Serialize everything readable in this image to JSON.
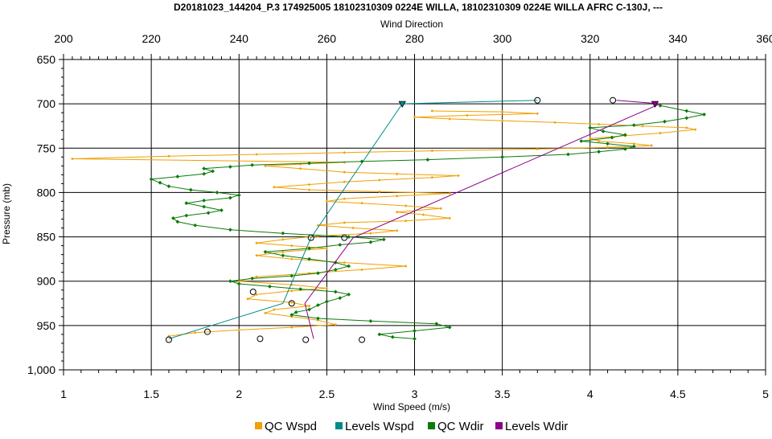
{
  "chart_data": {
    "type": "line",
    "title": "D20181023_144204_P.3 174925005 18102310309 0224E WILLA, 18102310309 0224E WILLA AFRC C-130J, ---",
    "x_bottom": {
      "label": "Wind Speed (m/s)",
      "range": [
        1,
        5
      ],
      "ticks": [
        "1",
        "1.5",
        "2",
        "2.5",
        "3",
        "3.5",
        "4",
        "4.5",
        "5"
      ]
    },
    "x_top": {
      "label": "Wind Direction",
      "range": [
        200,
        360
      ],
      "ticks": [
        "200",
        "220",
        "240",
        "260",
        "280",
        "300",
        "320",
        "340",
        "360"
      ]
    },
    "y": {
      "label": "Pressure (mb)",
      "range": [
        650,
        1000
      ],
      "inverted": true,
      "ticks": [
        "650",
        "700",
        "750",
        "800",
        "850",
        "900",
        "950",
        "1,000"
      ]
    },
    "grid": true,
    "legend_position": "bottom",
    "colors": {
      "qc_wspd": "#F0A000",
      "levels_wspd": "#008B8B",
      "qc_wdir": "#0B7A0B",
      "levels_wdir": "#8B008B"
    },
    "series": [
      {
        "name": "QC Wspd",
        "axis": "bottom",
        "points": [
          [
            1.6,
            962
          ],
          [
            1.75,
            958
          ],
          [
            2.0,
            955
          ],
          [
            2.3,
            952
          ],
          [
            2.55,
            949
          ],
          [
            2.45,
            944
          ],
          [
            2.3,
            940
          ],
          [
            2.15,
            936
          ],
          [
            2.2,
            932
          ],
          [
            2.4,
            928
          ],
          [
            2.3,
            924
          ],
          [
            2.05,
            920
          ],
          [
            2.1,
            915
          ],
          [
            2.3,
            911
          ],
          [
            2.5,
            908
          ],
          [
            2.3,
            904
          ],
          [
            2.0,
            900
          ],
          [
            2.1,
            895
          ],
          [
            2.4,
            891
          ],
          [
            2.7,
            887
          ],
          [
            2.95,
            883
          ],
          [
            2.6,
            879
          ],
          [
            2.3,
            875
          ],
          [
            2.1,
            871
          ],
          [
            2.25,
            867
          ],
          [
            2.5,
            863
          ],
          [
            2.3,
            860
          ],
          [
            2.1,
            857
          ],
          [
            2.25,
            853
          ],
          [
            2.45,
            849
          ],
          [
            2.75,
            846
          ],
          [
            2.9,
            843
          ],
          [
            2.65,
            840
          ],
          [
            2.45,
            837
          ],
          [
            2.6,
            834
          ],
          [
            2.95,
            832
          ],
          [
            3.2,
            829
          ],
          [
            3.05,
            825
          ],
          [
            2.9,
            822
          ],
          [
            3.15,
            818
          ],
          [
            2.95,
            815
          ],
          [
            2.7,
            812
          ],
          [
            2.5,
            810
          ],
          [
            2.6,
            807
          ],
          [
            2.9,
            804
          ],
          [
            3.2,
            801
          ],
          [
            2.8,
            799
          ],
          [
            2.4,
            797
          ],
          [
            2.2,
            794
          ],
          [
            2.4,
            791
          ],
          [
            2.6,
            788
          ],
          [
            2.8,
            786
          ],
          [
            3.1,
            783
          ],
          [
            3.25,
            781
          ],
          [
            2.9,
            779
          ],
          [
            2.6,
            777
          ],
          [
            2.35,
            773
          ],
          [
            2.15,
            770
          ],
          [
            2.35,
            768
          ],
          [
            2.6,
            766
          ],
          [
            1.05,
            762
          ],
          [
            1.6,
            759
          ],
          [
            2.1,
            757
          ],
          [
            2.6,
            755
          ],
          [
            3.1,
            753
          ],
          [
            3.7,
            751
          ],
          [
            4.1,
            749
          ],
          [
            4.35,
            747
          ],
          [
            4.25,
            745
          ],
          [
            4.05,
            742
          ],
          [
            4.0,
            739
          ],
          [
            4.2,
            736
          ],
          [
            4.4,
            733
          ],
          [
            4.6,
            729
          ],
          [
            4.55,
            727
          ],
          [
            4.3,
            725
          ],
          [
            4.05,
            723
          ],
          [
            3.8,
            721
          ],
          [
            3.5,
            719
          ],
          [
            3.2,
            717
          ],
          [
            3.0,
            715
          ],
          [
            3.3,
            713
          ],
          [
            3.7,
            711
          ],
          [
            3.5,
            709
          ],
          [
            3.1,
            708
          ]
        ]
      },
      {
        "name": "Levels Wspd",
        "axis": "bottom",
        "points": [
          [
            1.6,
            965
          ],
          [
            2.25,
            925
          ],
          [
            2.41,
            851
          ],
          [
            2.93,
            700
          ],
          [
            3.7,
            696
          ]
        ]
      },
      {
        "name": "QC Wdir",
        "axis": "top",
        "points": [
          [
            280,
            965
          ],
          [
            275,
            963
          ],
          [
            272,
            960
          ],
          [
            280,
            956
          ],
          [
            288,
            952
          ],
          [
            285,
            948
          ],
          [
            270,
            945
          ],
          [
            258,
            942
          ],
          [
            252,
            938
          ],
          [
            253,
            935
          ],
          [
            256,
            932
          ],
          [
            258,
            927
          ],
          [
            260,
            923
          ],
          [
            263,
            919
          ],
          [
            265,
            915
          ],
          [
            262,
            912
          ],
          [
            254,
            909
          ],
          [
            247,
            906
          ],
          [
            240,
            903
          ],
          [
            238,
            900
          ],
          [
            243,
            897
          ],
          [
            252,
            894
          ],
          [
            258,
            891
          ],
          [
            262,
            887
          ],
          [
            265,
            883
          ],
          [
            262,
            879
          ],
          [
            256,
            875
          ],
          [
            250,
            871
          ],
          [
            246,
            867
          ],
          [
            256,
            863
          ],
          [
            263,
            859
          ],
          [
            270,
            856
          ],
          [
            273,
            853
          ],
          [
            265,
            850
          ],
          [
            250,
            846
          ],
          [
            238,
            842
          ],
          [
            230,
            837
          ],
          [
            226,
            833
          ],
          [
            225,
            829
          ],
          [
            228,
            826
          ],
          [
            233,
            823
          ],
          [
            236,
            820
          ],
          [
            232,
            816
          ],
          [
            228,
            812
          ],
          [
            232,
            809
          ],
          [
            238,
            806
          ],
          [
            240,
            803
          ],
          [
            235,
            800
          ],
          [
            229,
            797
          ],
          [
            224,
            793
          ],
          [
            222,
            789
          ],
          [
            220,
            785
          ],
          [
            226,
            782
          ],
          [
            232,
            779
          ],
          [
            234,
            776
          ],
          [
            232,
            773
          ],
          [
            238,
            771
          ],
          [
            243,
            769
          ],
          [
            256,
            767
          ],
          [
            268,
            765
          ],
          [
            283,
            763
          ],
          [
            300,
            760
          ],
          [
            315,
            757
          ],
          [
            322,
            754
          ],
          [
            328,
            751
          ],
          [
            330,
            748
          ],
          [
            324,
            745
          ],
          [
            318,
            742
          ],
          [
            325,
            738
          ],
          [
            328,
            735
          ],
          [
            323,
            731
          ],
          [
            320,
            727
          ],
          [
            330,
            724
          ],
          [
            337,
            720
          ],
          [
            342,
            716
          ],
          [
            346,
            712
          ],
          [
            342,
            708
          ],
          [
            336,
            702
          ]
        ]
      },
      {
        "name": "Levels Wdir",
        "axis": "top",
        "points": [
          [
            257,
            965
          ],
          [
            255,
            925
          ],
          [
            266,
            851
          ],
          [
            336,
            700
          ],
          [
            326,
            696
          ]
        ]
      }
    ],
    "circle_markers": [
      {
        "wspd": 1.6,
        "p": 966
      },
      {
        "wspd": 1.82,
        "p": 957
      },
      {
        "wspd": 2.12,
        "p": 965
      },
      {
        "wspd": 2.38,
        "p": 966
      },
      {
        "wspd": 2.7,
        "p": 966
      },
      {
        "wspd": 2.08,
        "p": 912
      },
      {
        "wspd": 2.3,
        "p": 925
      },
      {
        "wspd": 2.41,
        "p": 851
      },
      {
        "wspd": 2.6,
        "p": 851
      },
      {
        "wspd": 3.7,
        "p": 696
      },
      {
        "wspd": 4.13,
        "p": 696
      }
    ],
    "triangle_markers": [
      {
        "series": "Levels Wspd",
        "wspd": 2.93,
        "p": 700
      },
      {
        "series": "Levels Wdir",
        "wspd": 4.37,
        "p": 700
      }
    ]
  },
  "legend": [
    {
      "label": "QC Wspd",
      "color": "#F0A000"
    },
    {
      "label": "Levels Wspd",
      "color": "#008B8B"
    },
    {
      "label": "QC Wdir",
      "color": "#0B7A0B"
    },
    {
      "label": "Levels Wdir",
      "color": "#8B008B"
    }
  ]
}
